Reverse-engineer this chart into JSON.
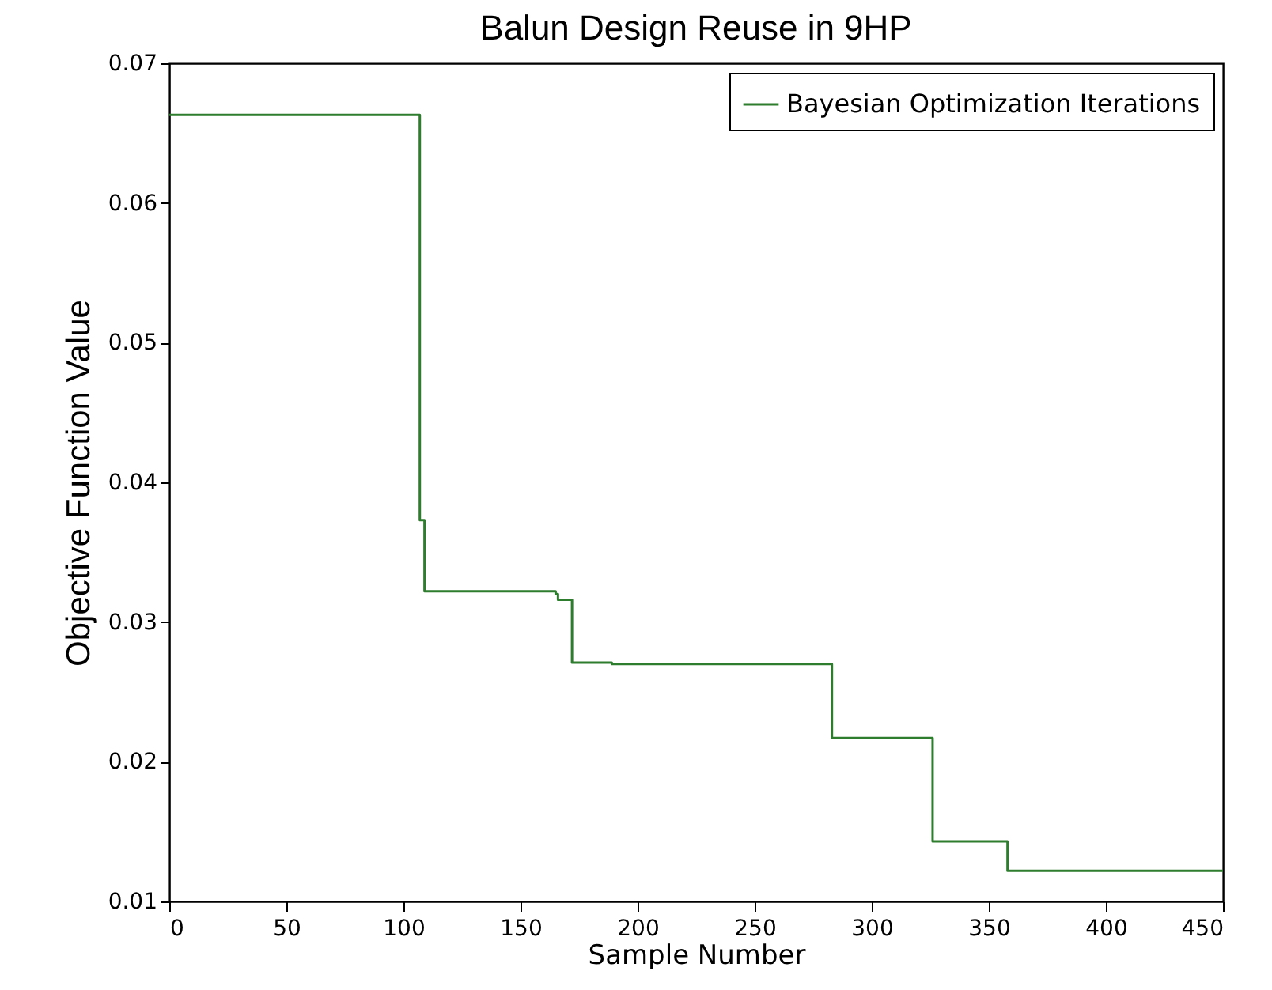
{
  "chart_data": {
    "type": "step",
    "title": "Balun Design Reuse in 9HP",
    "xlabel": "Sample Number",
    "ylabel": "Objective Function Value",
    "x": [
      0,
      107,
      109,
      165,
      166,
      172,
      189,
      283,
      326,
      358,
      450
    ],
    "series": [
      {
        "name": "Bayesian Optimization Iterations",
        "color": "#2e7d2e",
        "values": [
          0.0663,
          0.0373,
          0.0322,
          0.032,
          0.0316,
          0.0271,
          0.027,
          0.0217,
          0.0143,
          0.0122,
          0.0122
        ]
      }
    ],
    "xlim": [
      0,
      450
    ],
    "xticks": [
      0,
      50,
      100,
      150,
      200,
      250,
      300,
      350,
      400,
      450
    ],
    "ylim": [
      0.01,
      0.07
    ],
    "yticks": [
      0.01,
      0.02,
      0.03,
      0.04,
      0.05,
      0.06,
      0.07
    ],
    "legend": "top right",
    "grid": false
  }
}
